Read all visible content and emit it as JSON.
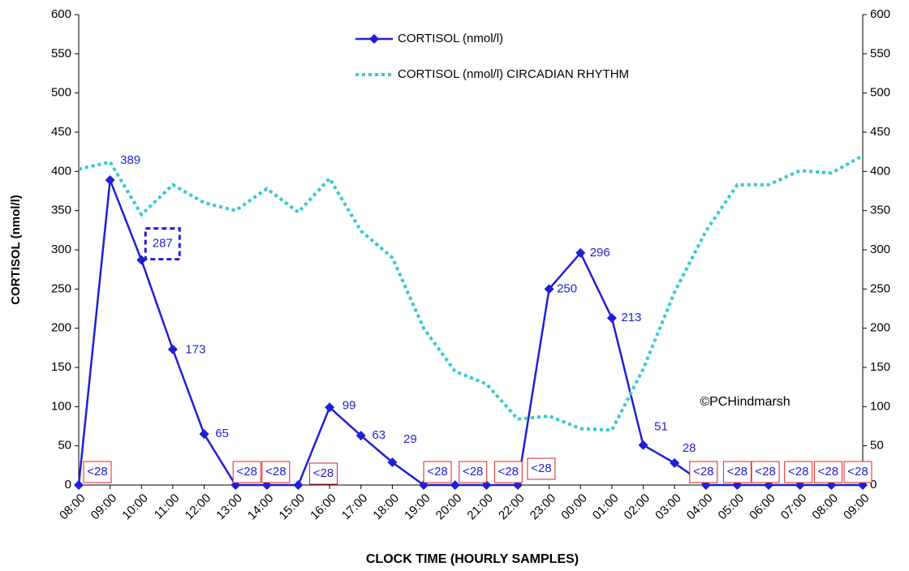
{
  "chart_data": {
    "type": "line",
    "y_label": "CORTISOL (nmol/l)",
    "x_label": "CLOCK TIME (HOURLY SAMPLES)",
    "annotation": "©PCHindmarsh",
    "categories": [
      "08:00",
      "09:00",
      "10:00",
      "11:00",
      "12:00",
      "13:00",
      "14:00",
      "15:00",
      "16:00",
      "17:00",
      "18:00",
      "19:00",
      "20:00",
      "21:00",
      "22:00",
      "23:00",
      "00:00",
      "01:00",
      "02:00",
      "03:00",
      "04:00",
      "05:00",
      "06:00",
      "07:00",
      "08:00",
      "09:00"
    ],
    "series": [
      {
        "name": "CORTISOL (nmol/l)",
        "color": "#1f1fd6",
        "style": "solid-diamond",
        "values": [
          0,
          389,
          287,
          173,
          65,
          0,
          0,
          0,
          99,
          63,
          29,
          0,
          0,
          0,
          0,
          250,
          296,
          213,
          51,
          28,
          0,
          0,
          0,
          0,
          0,
          0
        ],
        "value_labels": [
          "<28",
          "389",
          "287",
          "173",
          "65",
          "<28",
          "<28",
          "<28",
          "99",
          "63",
          "29",
          "<28",
          "<28",
          "<28",
          "<28",
          "250",
          "296",
          "213",
          "51",
          "28",
          "<28",
          "<28",
          "<28",
          "<28",
          "<28",
          "<28"
        ]
      },
      {
        "name": "CORTISOL (nmol/l) CIRCADIAN RHYTHM",
        "color": "#33cccc",
        "style": "dotted",
        "axis": "y2",
        "values": [
          403,
          412,
          345,
          383,
          360,
          350,
          378,
          348,
          391,
          324,
          290,
          200,
          145,
          129,
          84,
          88,
          72,
          70,
          148,
          246,
          324,
          383,
          383,
          401,
          398,
          420
        ]
      }
    ],
    "ylim": [
      0,
      600
    ],
    "yticks": [
      0,
      50,
      100,
      150,
      200,
      250,
      300,
      350,
      400,
      450,
      500,
      550,
      600
    ],
    "y2lim": [
      0,
      600
    ],
    "y2ticks": [
      0,
      50,
      100,
      150,
      200,
      250,
      300,
      350,
      400,
      450,
      500,
      550,
      600
    ]
  }
}
